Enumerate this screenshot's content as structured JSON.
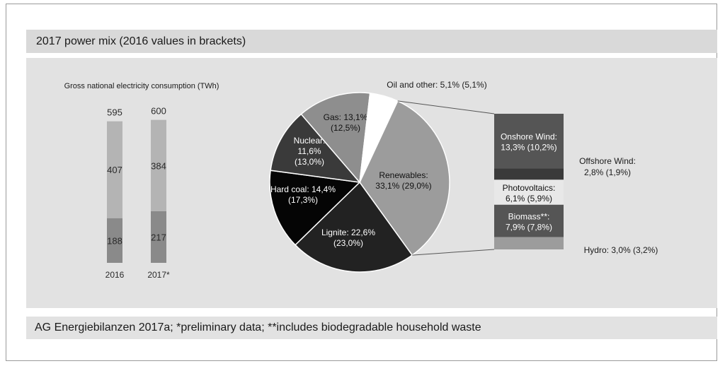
{
  "header": {
    "title": "2017 power mix (2016 values in brackets)"
  },
  "footer": {
    "source": "AG Energiebilanzen 2017a; *preliminary data; **includes biodegradable household waste"
  },
  "chart_data": [
    {
      "type": "bar",
      "subtype": "stacked",
      "title": "Gross national electricity consumption (TWh)",
      "categories": [
        "2016",
        "2017*"
      ],
      "totals": [
        "595",
        "600"
      ],
      "series": [
        {
          "values": [
            188,
            217
          ],
          "labels": [
            "188",
            "217"
          ],
          "color": "#8a8a8a"
        },
        {
          "values": [
            407,
            384
          ],
          "labels": [
            "407",
            "384"
          ],
          "color": "#b4b4b4"
        }
      ]
    },
    {
      "type": "pie",
      "slices": [
        {
          "value": 33.1,
          "label_line1": "Renewables:",
          "label_line2": "33,1% (29,0%)",
          "color": "#9c9c9c"
        },
        {
          "value": 22.6,
          "label_line1": "Lignite: 22,6%",
          "label_line2": "(23,0%)",
          "color": "#222222"
        },
        {
          "value": 14.4,
          "label_line1": "Hard coal: 14,4%",
          "label_line2": "(17,3%)",
          "color": "#050505"
        },
        {
          "value": 11.6,
          "label_line1": "Nuclear:",
          "label_line2": "11,6%",
          "label_line3": "(13,0%)",
          "color": "#3a3a3a"
        },
        {
          "value": 13.1,
          "label_line1": "Gas: 13,1%",
          "label_line2": "(12,5%)",
          "color": "#8e8e8e"
        },
        {
          "value": 5.1,
          "label_line1": "Oil and other: 5,1% (5,1%)",
          "color": "#ffffff"
        }
      ]
    },
    {
      "type": "bar",
      "subtype": "stacked-breakdown",
      "parent": "Renewables",
      "segments": [
        {
          "value": 13.3,
          "label_line1": "Onshore Wind:",
          "label_line2": "13,3% (10,2%)",
          "color": "#555555",
          "text_color": "#ffffff",
          "inside": true
        },
        {
          "value": 2.8,
          "label_line1": "Offshore Wind:",
          "label_line2": "2,8% (1,9%)",
          "color": "#3a3a3a",
          "inside": false
        },
        {
          "value": 6.1,
          "label_line1": "Photovoltaics:",
          "label_line2": "6,1% (5,9%)",
          "color": "#e8e8e8",
          "text_color": "#111111",
          "inside": true
        },
        {
          "value": 7.9,
          "label_line1": "Biomass**:",
          "label_line2": "7,9% (7,8%)",
          "color": "#555555",
          "text_color": "#ffffff",
          "inside": true
        },
        {
          "value": 3.0,
          "label_line1": "Hydro: 3,0% (3,2%)",
          "color": "#9c9c9c",
          "inside": false
        }
      ]
    }
  ]
}
